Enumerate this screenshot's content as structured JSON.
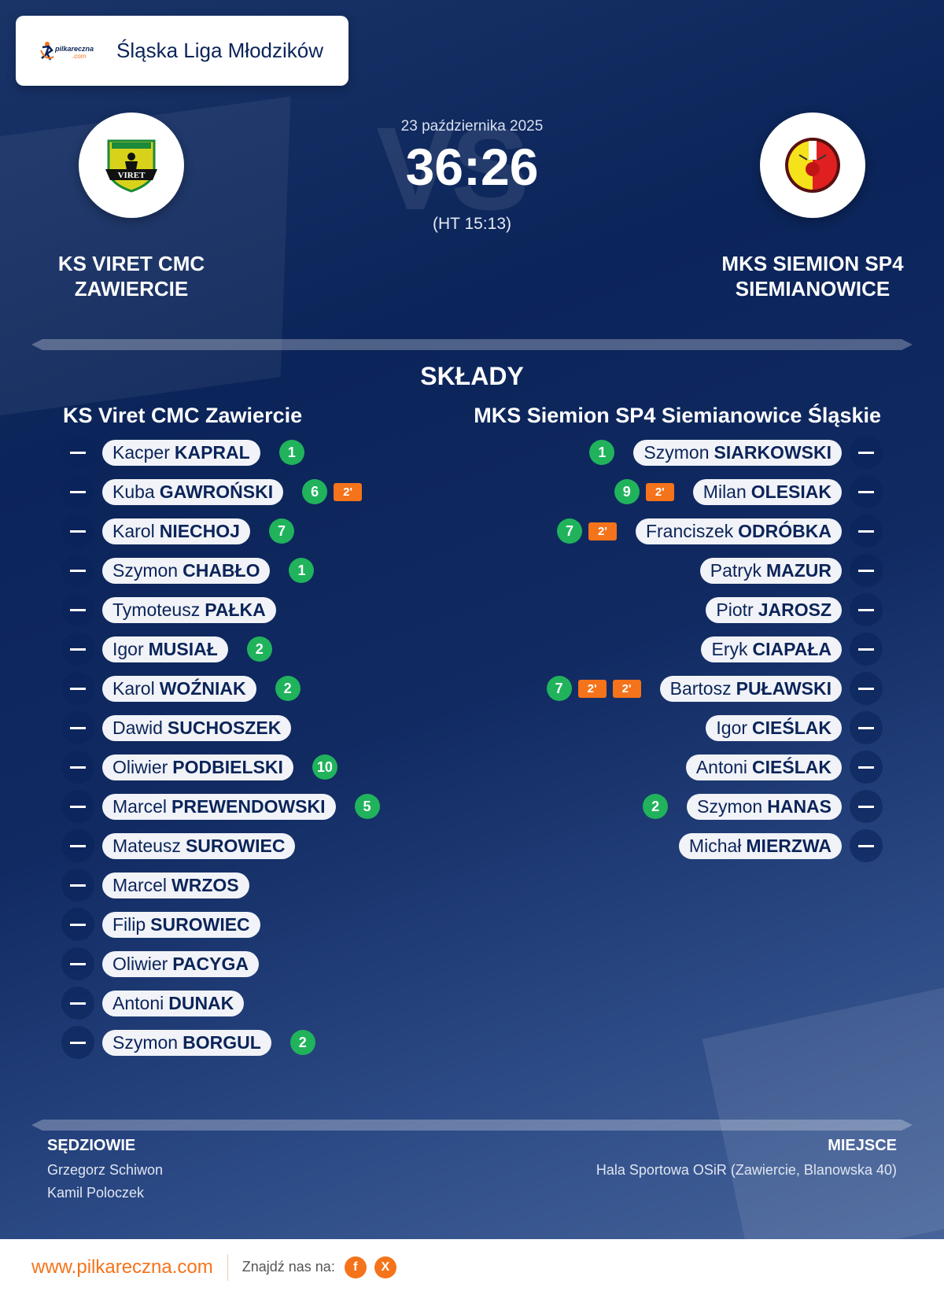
{
  "header": {
    "league": "Śląska Liga Młodzików",
    "logo_text": "pilkareczna.com"
  },
  "match": {
    "date": "23 października 2025",
    "score": "36:26",
    "halftime": "(HT 15:13)",
    "vs_watermark": "VS",
    "home": {
      "name_line1": "KS VIRET CMC",
      "name_line2": "ZAWIERCIE",
      "crest_text": "VIRET"
    },
    "away": {
      "name_line1": "MKS SIEMION SP4",
      "name_line2": "SIEMIANOWICE"
    }
  },
  "lineups": {
    "title": "SKŁADY",
    "home_team": "KS Viret CMC Zawiercie",
    "away_team": "MKS Siemion SP4 Siemianowice Śląskie",
    "home": [
      {
        "first": "Kacper",
        "last": "KAPRAL",
        "goals": "1",
        "pens": []
      },
      {
        "first": "Kuba",
        "last": "GAWROŃSKI",
        "goals": "6",
        "pens": [
          "2'"
        ]
      },
      {
        "first": "Karol",
        "last": "NIECHOJ",
        "goals": "7",
        "pens": []
      },
      {
        "first": "Szymon",
        "last": "CHABŁO",
        "goals": "1",
        "pens": []
      },
      {
        "first": "Tymoteusz",
        "last": "PAŁKA",
        "goals": null,
        "pens": []
      },
      {
        "first": "Igor",
        "last": "MUSIAŁ",
        "goals": "2",
        "pens": []
      },
      {
        "first": "Karol",
        "last": "WOŹNIAK",
        "goals": "2",
        "pens": []
      },
      {
        "first": "Dawid",
        "last": "SUCHOSZEK",
        "goals": null,
        "pens": []
      },
      {
        "first": "Oliwier",
        "last": "PODBIELSKI",
        "goals": "10",
        "pens": []
      },
      {
        "first": "Marcel",
        "last": "PREWENDOWSKI",
        "goals": "5",
        "pens": []
      },
      {
        "first": "Mateusz",
        "last": "SUROWIEC",
        "goals": null,
        "pens": []
      },
      {
        "first": "Marcel",
        "last": "WRZOS",
        "goals": null,
        "pens": []
      },
      {
        "first": "Filip",
        "last": "SUROWIEC",
        "goals": null,
        "pens": []
      },
      {
        "first": "Oliwier",
        "last": "PACYGA",
        "goals": null,
        "pens": []
      },
      {
        "first": "Antoni",
        "last": "DUNAK",
        "goals": null,
        "pens": []
      },
      {
        "first": "Szymon",
        "last": "BORGUL",
        "goals": "2",
        "pens": []
      }
    ],
    "away": [
      {
        "first": "Szymon",
        "last": "SIARKOWSKI",
        "goals": "1",
        "pens": []
      },
      {
        "first": "Milan",
        "last": "OLESIAK",
        "goals": "9",
        "pens": [
          "2'"
        ]
      },
      {
        "first": "Franciszek",
        "last": "ODRÓBKA",
        "goals": "7",
        "pens": [
          "2'"
        ]
      },
      {
        "first": "Patryk",
        "last": "MAZUR",
        "goals": null,
        "pens": []
      },
      {
        "first": "Piotr",
        "last": "JAROSZ",
        "goals": null,
        "pens": []
      },
      {
        "first": "Eryk",
        "last": "CIAPAŁA",
        "goals": null,
        "pens": []
      },
      {
        "first": "Bartosz",
        "last": "PUŁAWSKI",
        "goals": "7",
        "pens": [
          "2'",
          "2'"
        ]
      },
      {
        "first": "Igor",
        "last": "CIEŚLAK",
        "goals": null,
        "pens": []
      },
      {
        "first": "Antoni",
        "last": "CIEŚLAK",
        "goals": null,
        "pens": []
      },
      {
        "first": "Szymon",
        "last": "HANAS",
        "goals": "2",
        "pens": []
      },
      {
        "first": "Michał",
        "last": "MIERZWA",
        "goals": null,
        "pens": []
      }
    ]
  },
  "officials": {
    "label": "SĘDZIOWIE",
    "names": [
      "Grzegorz Schiwon",
      "Kamil Poloczek"
    ]
  },
  "venue": {
    "label": "MIEJSCE",
    "value": "Hala Sportowa OSiR (Zawiercie, Blanowska 40)"
  },
  "footer": {
    "site": "www.pilkareczna.com",
    "find_us": "Znajdź nas na:",
    "social": [
      {
        "icon": "facebook-icon",
        "glyph": "f"
      },
      {
        "icon": "x-icon",
        "glyph": "X"
      }
    ]
  },
  "colors": {
    "navy": "#0b2459",
    "goal": "#20b35c",
    "penalty": "#f5731a"
  }
}
